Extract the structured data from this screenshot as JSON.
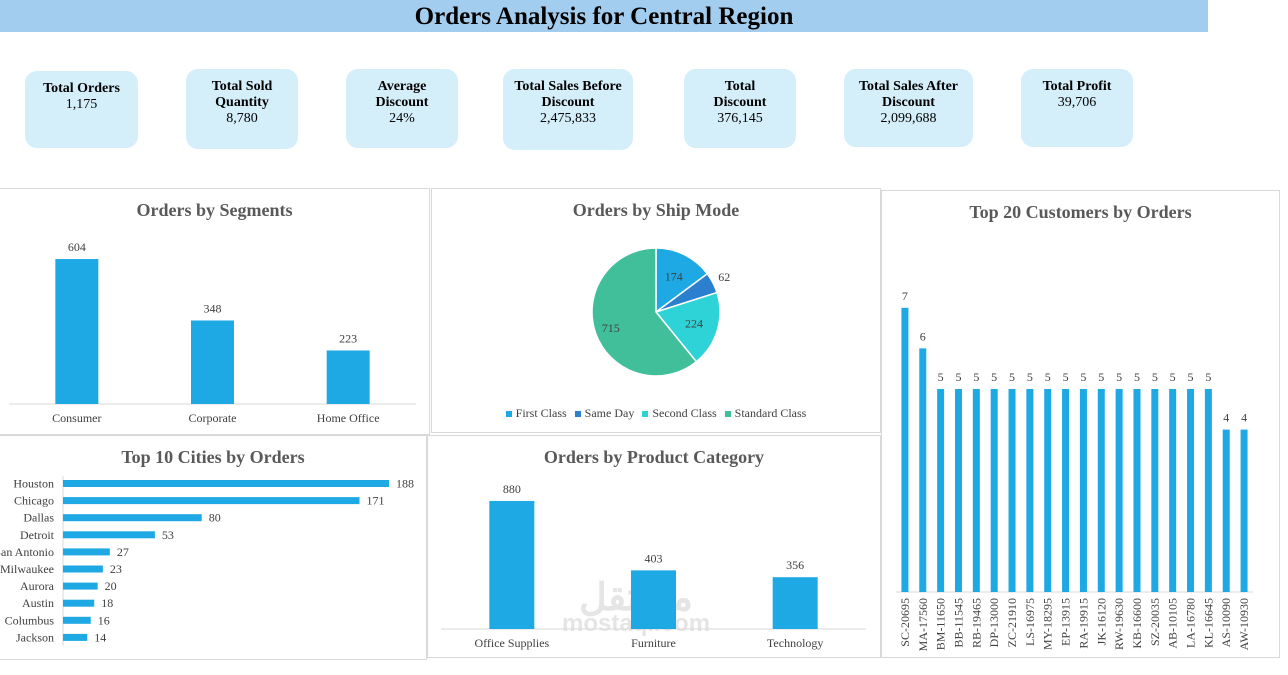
{
  "title": "Orders Analysis for Central Region",
  "kpis": [
    {
      "label": "Total Orders",
      "value": "1,175"
    },
    {
      "label": "Total Sold Quantity",
      "value": "8,780"
    },
    {
      "label": "Average Discount",
      "value": "24%"
    },
    {
      "label": "Total Sales Before Discount",
      "value": "2,475,833"
    },
    {
      "label": "Total Discount",
      "value": "376,145"
    },
    {
      "label": "Total Sales After Discount",
      "value": "2,099,688"
    },
    {
      "label": "Total Profit",
      "value": "39,706"
    }
  ],
  "colors": {
    "bar": "#1ea9e4",
    "title_bar": "#a3cdee",
    "kpi_card": "#d4eefa"
  },
  "watermark": {
    "arabic": "مستقل",
    "latin": "mostaql.com"
  },
  "chart_data": [
    {
      "id": "segments",
      "type": "bar",
      "title": "Orders by Segments",
      "categories": [
        "Consumer",
        "Corporate",
        "Home Office"
      ],
      "values": [
        604,
        348,
        223
      ],
      "grid": false,
      "data_labels": true
    },
    {
      "id": "shipmode",
      "type": "pie",
      "title": "Orders by Ship Mode",
      "categories": [
        "First Class",
        "Same Day",
        "Second Class",
        "Standard Class"
      ],
      "values": [
        174,
        62,
        224,
        715
      ],
      "colors": [
        "#1ea9e4",
        "#2a7fcf",
        "#2ed3d8",
        "#40bf9a"
      ],
      "legend": "bottom"
    },
    {
      "id": "customers",
      "type": "bar",
      "title": "Top 20 Customers by Orders",
      "categories": [
        "SC-20695",
        "MA-17560",
        "BM-11650",
        "BB-11545",
        "RB-19465",
        "DP-13000",
        "ZC-21910",
        "LS-16975",
        "MY-18295",
        "EP-13915",
        "RA-19915",
        "JK-16120",
        "RW-19630",
        "KB-16600",
        "SZ-20035",
        "AB-10105",
        "LA-16780",
        "KL-16645",
        "AS-10090",
        "AW-10930"
      ],
      "values": [
        7,
        6,
        5,
        5,
        5,
        5,
        5,
        5,
        5,
        5,
        5,
        5,
        5,
        5,
        5,
        5,
        5,
        5,
        4,
        4
      ],
      "grid": false,
      "data_labels": true
    },
    {
      "id": "cities",
      "type": "bar",
      "orientation": "horizontal",
      "title": "Top 10 Cities by Orders",
      "categories": [
        "Houston",
        "Chicago",
        "Dallas",
        "Detroit",
        "San Antonio",
        "Milwaukee",
        "Aurora",
        "Austin",
        "Columbus",
        "Jackson"
      ],
      "values": [
        188,
        171,
        80,
        53,
        27,
        23,
        20,
        18,
        16,
        14
      ],
      "grid": false,
      "data_labels": true
    },
    {
      "id": "category",
      "type": "bar",
      "title": "Orders by Product Category",
      "categories": [
        "Office Supplies",
        "Furniture",
        "Technology"
      ],
      "values": [
        880,
        403,
        356
      ],
      "grid": false,
      "data_labels": true
    }
  ]
}
